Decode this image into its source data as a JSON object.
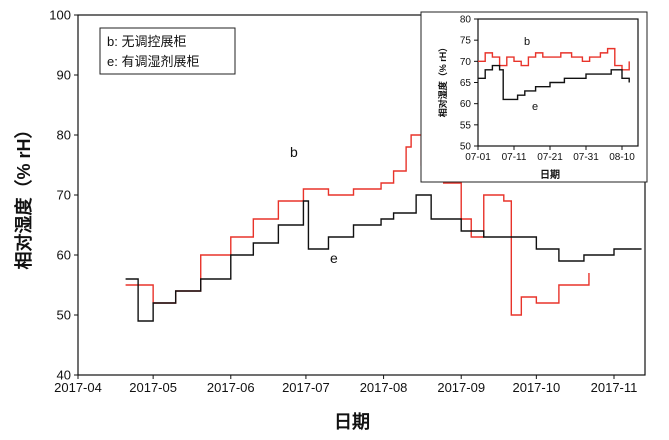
{
  "chart_data": [
    {
      "type": "line",
      "title": "",
      "xlabel": "日期",
      "ylabel": "相对湿度（% rH）",
      "ylim": [
        40,
        100
      ],
      "yticks": [
        40,
        50,
        60,
        70,
        80,
        90,
        100
      ],
      "xlim": [
        "2017-04-01",
        "2017-11-12"
      ],
      "xticks": [
        "2017-04",
        "2017-05",
        "2017-06",
        "2017-07",
        "2017-08",
        "2017-09",
        "2017-10",
        "2017-11"
      ],
      "legend": {
        "placement": "top-left",
        "entries": [
          "b: 无调控展柜",
          "e: 有调湿剂展柜"
        ]
      },
      "annotations": [
        "b",
        "e"
      ],
      "series": [
        {
          "name": "b",
          "color": "#e8332a",
          "points": [
            [
              "2017-04-20",
              55
            ],
            [
              "2017-05-01",
              52
            ],
            [
              "2017-05-10",
              54
            ],
            [
              "2017-05-20",
              60
            ],
            [
              "2017-06-01",
              63
            ],
            [
              "2017-06-10",
              66
            ],
            [
              "2017-06-20",
              69
            ],
            [
              "2017-06-30",
              71
            ],
            [
              "2017-07-10",
              70
            ],
            [
              "2017-07-20",
              71
            ],
            [
              "2017-07-31",
              72
            ],
            [
              "2017-08-05",
              74
            ],
            [
              "2017-08-10",
              78
            ],
            [
              "2017-08-12",
              80
            ],
            [
              "2017-08-16",
              75
            ],
            [
              "2017-08-20",
              78
            ],
            [
              "2017-08-25",
              72
            ],
            [
              "2017-09-01",
              66
            ],
            [
              "2017-09-05",
              63
            ],
            [
              "2017-09-10",
              70
            ],
            [
              "2017-09-18",
              69
            ],
            [
              "2017-09-21",
              50
            ],
            [
              "2017-09-25",
              53
            ],
            [
              "2017-10-01",
              52
            ],
            [
              "2017-10-10",
              55
            ],
            [
              "2017-10-22",
              57
            ]
          ]
        },
        {
          "name": "e",
          "color": "#111111",
          "points": [
            [
              "2017-04-20",
              56
            ],
            [
              "2017-04-25",
              49
            ],
            [
              "2017-05-01",
              52
            ],
            [
              "2017-05-10",
              54
            ],
            [
              "2017-05-20",
              56
            ],
            [
              "2017-06-01",
              60
            ],
            [
              "2017-06-10",
              62
            ],
            [
              "2017-06-20",
              65
            ],
            [
              "2017-06-30",
              69
            ],
            [
              "2017-07-02",
              61
            ],
            [
              "2017-07-10",
              63
            ],
            [
              "2017-07-20",
              65
            ],
            [
              "2017-07-31",
              66
            ],
            [
              "2017-08-05",
              67
            ],
            [
              "2017-08-14",
              70
            ],
            [
              "2017-08-20",
              66
            ],
            [
              "2017-09-01",
              64
            ],
            [
              "2017-09-10",
              63
            ],
            [
              "2017-09-20",
              63
            ],
            [
              "2017-10-01",
              61
            ],
            [
              "2017-10-10",
              59
            ],
            [
              "2017-10-20",
              60
            ],
            [
              "2017-11-01",
              61
            ],
            [
              "2017-11-12",
              61
            ]
          ]
        }
      ]
    },
    {
      "type": "line",
      "title": "",
      "xlabel": "日期",
      "ylabel": "相对湿度（% rH）",
      "ylim": [
        50,
        80
      ],
      "yticks": [
        50,
        55,
        60,
        65,
        70,
        75,
        80
      ],
      "xticks": [
        "07-01",
        "07-11",
        "07-21",
        "07-31",
        "08-10"
      ],
      "annotations": [
        "b",
        "e"
      ],
      "series": [
        {
          "name": "b",
          "color": "#e8332a",
          "points": [
            [
              "07-01",
              70
            ],
            [
              "07-03",
              72
            ],
            [
              "07-05",
              71
            ],
            [
              "07-07",
              69
            ],
            [
              "07-09",
              71
            ],
            [
              "07-11",
              70
            ],
            [
              "07-13",
              69
            ],
            [
              "07-15",
              71
            ],
            [
              "07-17",
              72
            ],
            [
              "07-19",
              71
            ],
            [
              "07-21",
              71
            ],
            [
              "07-24",
              72
            ],
            [
              "07-27",
              71
            ],
            [
              "07-30",
              70
            ],
            [
              "08-01",
              71
            ],
            [
              "08-04",
              72
            ],
            [
              "08-06",
              73
            ],
            [
              "08-08",
              69
            ],
            [
              "08-10",
              68
            ],
            [
              "08-12",
              70
            ]
          ]
        },
        {
          "name": "e",
          "color": "#111111",
          "points": [
            [
              "07-01",
              66
            ],
            [
              "07-03",
              68
            ],
            [
              "07-05",
              69
            ],
            [
              "07-07",
              68
            ],
            [
              "07-08",
              61
            ],
            [
              "07-10",
              61
            ],
            [
              "07-12",
              62
            ],
            [
              "07-14",
              63
            ],
            [
              "07-17",
              64
            ],
            [
              "07-21",
              65
            ],
            [
              "07-25",
              66
            ],
            [
              "07-31",
              67
            ],
            [
              "08-04",
              67
            ],
            [
              "08-07",
              68
            ],
            [
              "08-10",
              66
            ],
            [
              "08-12",
              65
            ]
          ]
        }
      ]
    }
  ]
}
